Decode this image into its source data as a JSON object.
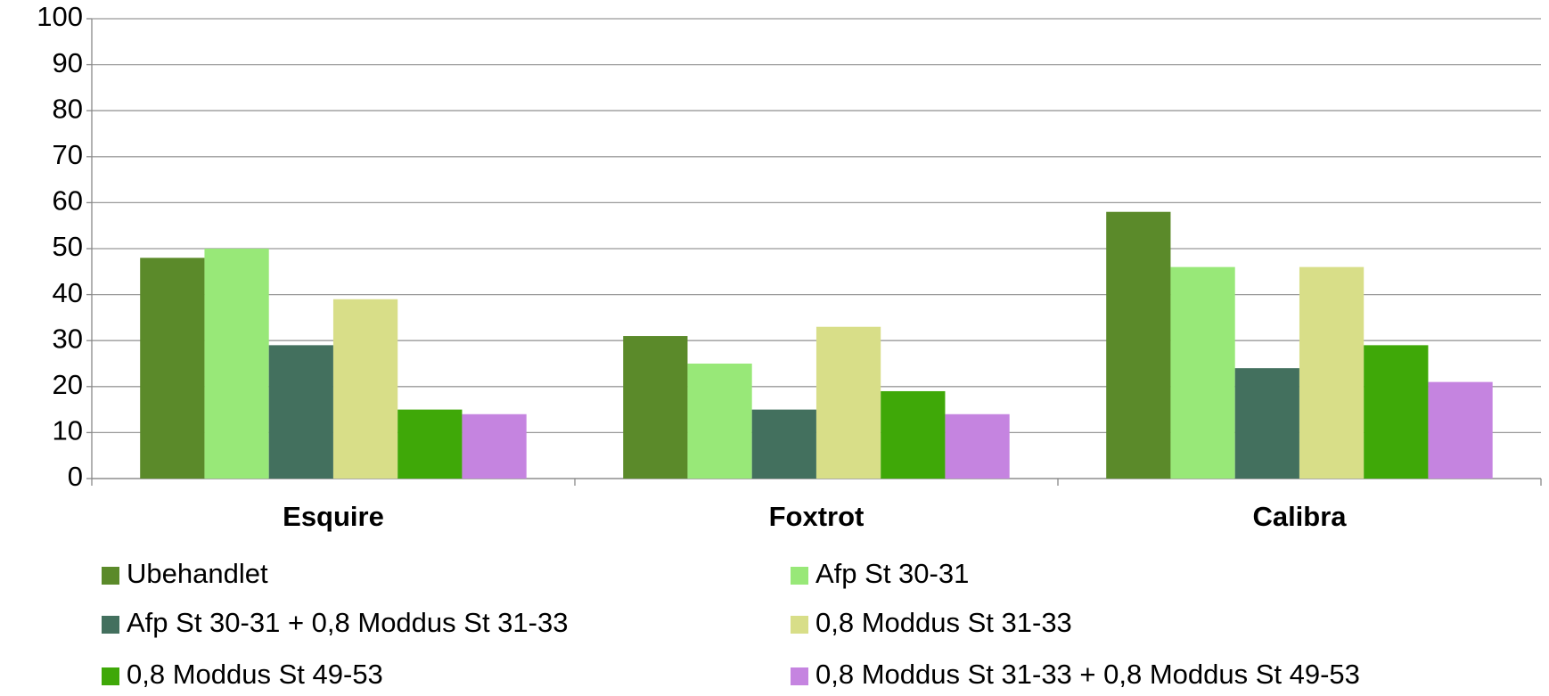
{
  "chart_data": {
    "type": "bar",
    "categories": [
      "Esquire",
      "Foxtrot",
      "Calibra"
    ],
    "series": [
      {
        "name": "Ubehandlet",
        "color": "#5b8a2a",
        "values": [
          48,
          31,
          58
        ]
      },
      {
        "name": "Afp St 30-31",
        "color": "#98e878",
        "values": [
          50,
          25,
          46
        ]
      },
      {
        "name": "Afp St 30-31 + 0,8 Moddus St 31-33",
        "color": "#43705e",
        "values": [
          29,
          15,
          24
        ]
      },
      {
        "name": "0,8 Moddus St 31-33",
        "color": "#d8de88",
        "values": [
          39,
          33,
          46
        ]
      },
      {
        "name": "0,8 Moddus St 49-53",
        "color": "#3fa808",
        "values": [
          15,
          19,
          29
        ]
      },
      {
        "name": "0,8 Moddus St 31-33 + 0,8 Moddus St 49-53",
        "color": "#c584e0",
        "values": [
          14,
          14,
          21
        ]
      }
    ],
    "ylim": [
      0,
      100
    ],
    "yticks": [
      0,
      10,
      20,
      30,
      40,
      50,
      60,
      70,
      80,
      90,
      100
    ],
    "grid": true
  }
}
